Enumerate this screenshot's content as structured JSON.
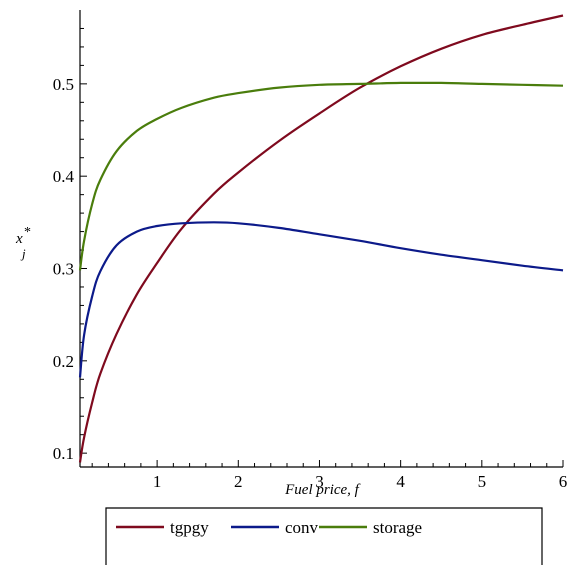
{
  "chart_data": {
    "type": "line",
    "title": "",
    "xlabel": "Fuel price, f",
    "ylabel": {
      "base": "x",
      "subscript": "j",
      "superscript": "*"
    },
    "xlim": [
      0.05,
      6
    ],
    "ylim": [
      0.085,
      0.58
    ],
    "xticks": [
      1,
      2,
      3,
      4,
      5,
      6
    ],
    "xtick_labels": [
      "1",
      "2",
      "3",
      "4",
      "5",
      "6"
    ],
    "yticks": [
      0.1,
      0.2,
      0.3,
      0.4,
      0.5
    ],
    "ytick_labels": [
      "0.1",
      "0.2",
      "0.3",
      "0.4",
      "0.5"
    ],
    "x": [
      0.05,
      0.1,
      0.2,
      0.3,
      0.5,
      0.75,
      1.0,
      1.3,
      1.7,
      2.0,
      2.5,
      3.0,
      3.5,
      4.0,
      4.5,
      5.0,
      5.5,
      6.0
    ],
    "series": [
      {
        "name": "tgpgy",
        "color": "#7f0a1e",
        "values": [
          0.09,
          0.117,
          0.155,
          0.186,
          0.229,
          0.272,
          0.306,
          0.343,
          0.381,
          0.404,
          0.438,
          0.468,
          0.496,
          0.519,
          0.538,
          0.553,
          0.564,
          0.574
        ]
      },
      {
        "name": "conv",
        "color": "#0c1a8a",
        "values": [
          0.182,
          0.228,
          0.27,
          0.297,
          0.325,
          0.34,
          0.346,
          0.349,
          0.35,
          0.349,
          0.344,
          0.337,
          0.33,
          0.322,
          0.315,
          0.309,
          0.303,
          0.298
        ]
      },
      {
        "name": "storage",
        "color": "#4a7d0c",
        "values": [
          0.298,
          0.33,
          0.37,
          0.396,
          0.427,
          0.449,
          0.462,
          0.474,
          0.485,
          0.49,
          0.496,
          0.499,
          0.5,
          0.501,
          0.501,
          0.5,
          0.499,
          0.498
        ]
      }
    ],
    "legend": {
      "position": "bottom",
      "entries": [
        "tgpgy",
        "conv",
        "storage"
      ]
    },
    "grid": false
  }
}
